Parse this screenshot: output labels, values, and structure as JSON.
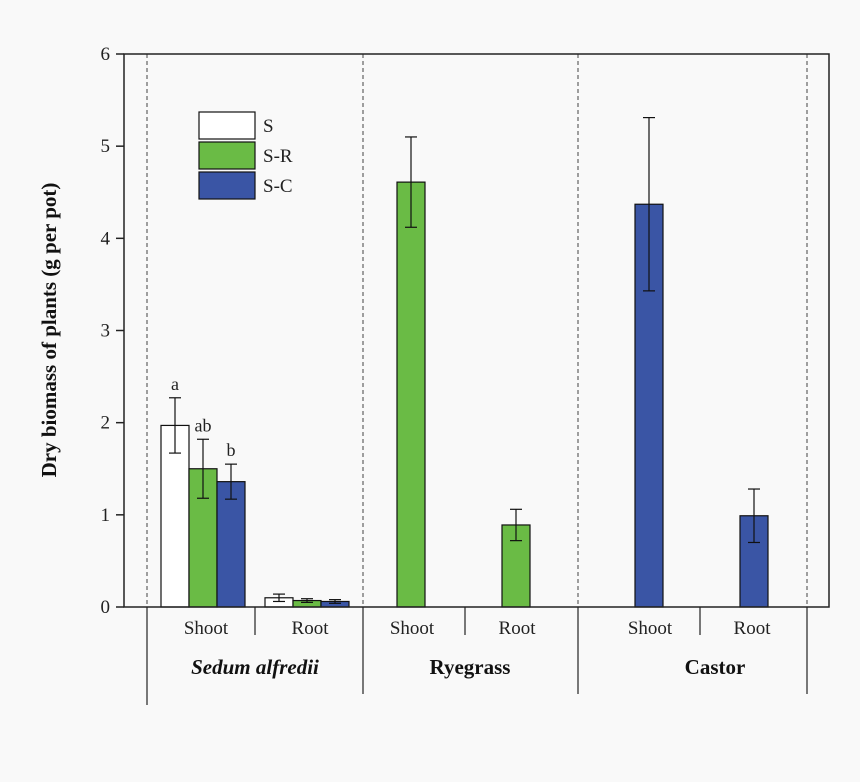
{
  "chart_data": {
    "type": "bar",
    "ylabel": "Dry biomass of plants (g per pot)",
    "ylim": [
      0,
      6
    ],
    "yticks": [
      "0",
      "1",
      "2",
      "3",
      "4",
      "5",
      "6"
    ],
    "legend": {
      "position": "top-left",
      "items": [
        {
          "name": "S",
          "color": "#ffffff"
        },
        {
          "name": "S-R",
          "color": "#6abb45"
        },
        {
          "name": "S-C",
          "color": "#3a55a5"
        }
      ]
    },
    "groups": [
      {
        "name": "Sedum alfredii",
        "italic": true,
        "subgroups": [
          {
            "label": "Shoot",
            "bars": [
              {
                "series": "S",
                "value": 1.97,
                "error": 0.3,
                "letter": "a"
              },
              {
                "series": "S-R",
                "value": 1.5,
                "error": 0.32,
                "letter": "ab"
              },
              {
                "series": "S-C",
                "value": 1.36,
                "error": 0.19,
                "letter": "b"
              }
            ]
          },
          {
            "label": "Root",
            "bars": [
              {
                "series": "S",
                "value": 0.1,
                "error": 0.04
              },
              {
                "series": "S-R",
                "value": 0.07,
                "error": 0.02
              },
              {
                "series": "S-C",
                "value": 0.06,
                "error": 0.02
              }
            ]
          }
        ]
      },
      {
        "name": "Ryegrass",
        "italic": false,
        "subgroups": [
          {
            "label": "Shoot",
            "bars": [
              {
                "series": "S-R",
                "value": 4.61,
                "error": 0.49
              }
            ]
          },
          {
            "label": "Root",
            "bars": [
              {
                "series": "S-R",
                "value": 0.89,
                "error": 0.17
              }
            ]
          }
        ]
      },
      {
        "name": "Castor",
        "italic": false,
        "subgroups": [
          {
            "label": "Shoot",
            "bars": [
              {
                "series": "S-C",
                "value": 4.37,
                "error": 0.94
              }
            ]
          },
          {
            "label": "Root",
            "bars": [
              {
                "series": "S-C",
                "value": 0.99,
                "error": 0.29
              }
            ]
          }
        ]
      }
    ]
  }
}
